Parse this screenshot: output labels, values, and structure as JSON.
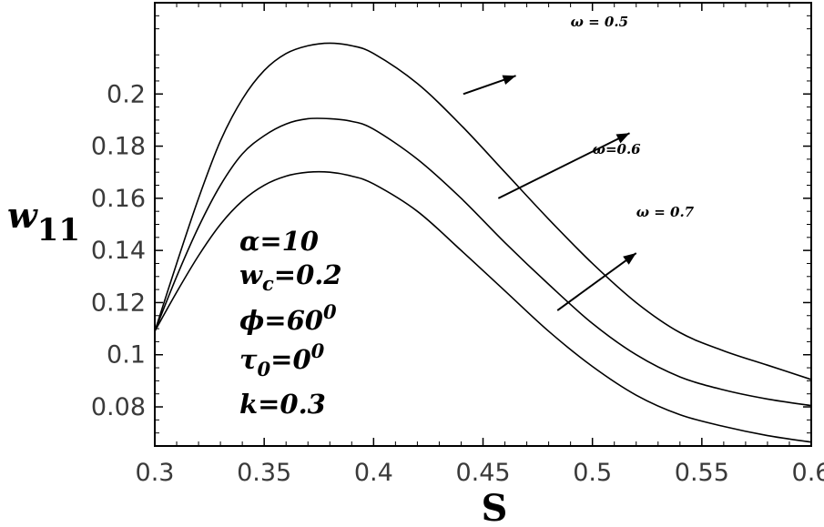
{
  "chart_data": {
    "type": "line",
    "xlabel": "S",
    "ylabel_main": "w",
    "ylabel_sub": "11",
    "xlim": [
      0.3,
      0.6
    ],
    "ylim": [
      0.065,
      0.235
    ],
    "xticks": [
      0.3,
      0.35,
      0.4,
      0.45,
      0.5,
      0.55,
      0.6
    ],
    "xtick_labels": [
      "0.3",
      "0.35",
      "0.4",
      "0.45",
      "0.5",
      "0.55",
      "0.6"
    ],
    "yticks": [
      0.08,
      0.1,
      0.12,
      0.14,
      0.16,
      0.18,
      0.2
    ],
    "ytick_labels": [
      "0.08",
      "0.1",
      "0.12",
      "0.14",
      "0.16",
      "0.18",
      "0.2"
    ],
    "grid": false,
    "series": [
      {
        "name": "ω = 0.5",
        "x": [
          0.3,
          0.31,
          0.32,
          0.33,
          0.34,
          0.35,
          0.36,
          0.37,
          0.38,
          0.39,
          0.4,
          0.42,
          0.44,
          0.46,
          0.48,
          0.5,
          0.52,
          0.54,
          0.56,
          0.58,
          0.6
        ],
        "y": [
          0.109,
          0.135,
          0.16,
          0.182,
          0.198,
          0.209,
          0.2155,
          0.2185,
          0.2195,
          0.2185,
          0.2155,
          0.204,
          0.188,
          0.17,
          0.152,
          0.135,
          0.12,
          0.1085,
          0.1015,
          0.096,
          0.0905
        ]
      },
      {
        "name": "ω=0.6",
        "x": [
          0.3,
          0.31,
          0.32,
          0.33,
          0.34,
          0.35,
          0.36,
          0.37,
          0.38,
          0.39,
          0.4,
          0.42,
          0.44,
          0.46,
          0.48,
          0.5,
          0.52,
          0.54,
          0.56,
          0.58,
          0.6
        ],
        "y": [
          0.109,
          0.13,
          0.149,
          0.165,
          0.177,
          0.184,
          0.1885,
          0.1905,
          0.1905,
          0.1895,
          0.1865,
          0.175,
          0.16,
          0.143,
          0.127,
          0.112,
          0.1,
          0.0915,
          0.0865,
          0.083,
          0.0805
        ]
      },
      {
        "name": "ω = 0.7",
        "x": [
          0.3,
          0.31,
          0.32,
          0.33,
          0.34,
          0.35,
          0.36,
          0.37,
          0.38,
          0.39,
          0.4,
          0.42,
          0.44,
          0.46,
          0.48,
          0.5,
          0.52,
          0.54,
          0.56,
          0.58,
          0.6
        ],
        "y": [
          0.109,
          0.124,
          0.138,
          0.15,
          0.159,
          0.165,
          0.1685,
          0.17,
          0.17,
          0.1685,
          0.1655,
          0.155,
          0.14,
          0.1245,
          0.109,
          0.0955,
          0.0845,
          0.077,
          0.0725,
          0.069,
          0.0665
        ]
      }
    ],
    "curve_labels": [
      {
        "text": "ω = 0.5",
        "x": 0.49,
        "y": 0.226,
        "arrow": [
          [
            0.441,
            0.2
          ],
          [
            0.465,
            0.207
          ]
        ]
      },
      {
        "text": "ω=0.6",
        "x": 0.5,
        "y": 0.177,
        "arrow": [
          [
            0.457,
            0.16
          ],
          [
            0.517,
            0.185
          ]
        ]
      },
      {
        "text": "ω = 0.7",
        "x": 0.52,
        "y": 0.153,
        "arrow": [
          [
            0.484,
            0.117
          ],
          [
            0.52,
            0.139
          ]
        ]
      }
    ],
    "parameters": {
      "alpha": "α=10",
      "wc_main": "w",
      "wc_sub": "c",
      "wc_rest": "=0.2",
      "phi_main": "ϕ=60",
      "phi_sup": "0",
      "tau_main": "τ",
      "tau_sub": "0",
      "tau_rest": "=0",
      "tau_sup": "0",
      "k": "k=0.3"
    }
  }
}
